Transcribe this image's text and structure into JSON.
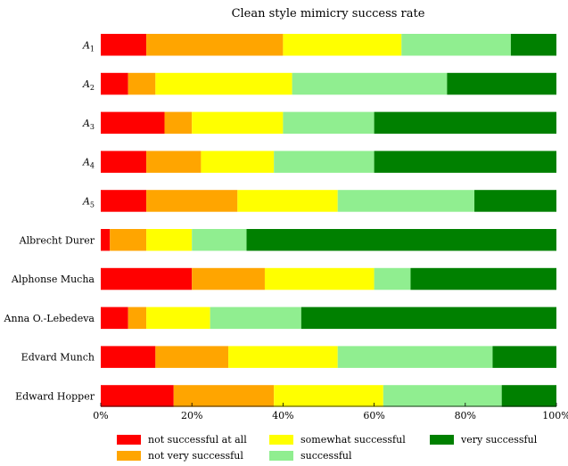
{
  "chart_data": {
    "type": "bar",
    "orientation": "horizontal",
    "stacked": true,
    "title": "Clean style mimicry success rate",
    "categories": [
      {
        "base": "A",
        "sub": "1"
      },
      {
        "base": "A",
        "sub": "2"
      },
      {
        "base": "A",
        "sub": "3"
      },
      {
        "base": "A",
        "sub": "4"
      },
      {
        "base": "A",
        "sub": "5"
      },
      {
        "base": "Albrecht Durer",
        "sub": ""
      },
      {
        "base": "Alphonse Mucha",
        "sub": ""
      },
      {
        "base": "Anna O.-Lebedeva",
        "sub": ""
      },
      {
        "base": "Edvard Munch",
        "sub": ""
      },
      {
        "base": "Edward Hopper",
        "sub": ""
      }
    ],
    "series": [
      {
        "name": "not successful at all",
        "color": "#ff0000",
        "values": [
          10,
          6,
          14,
          10,
          10,
          2,
          20,
          6,
          12,
          16
        ]
      },
      {
        "name": "not very successful",
        "color": "#ffa500",
        "values": [
          30,
          6,
          6,
          12,
          20,
          8,
          16,
          4,
          16,
          22
        ]
      },
      {
        "name": "somewhat successful",
        "color": "#ffff00",
        "values": [
          26,
          30,
          20,
          16,
          22,
          10,
          24,
          14,
          24,
          24
        ]
      },
      {
        "name": "successful",
        "color": "#90ee90",
        "values": [
          24,
          34,
          20,
          22,
          30,
          12,
          8,
          20,
          34,
          26
        ]
      },
      {
        "name": "very successful",
        "color": "#008000",
        "values": [
          10,
          24,
          40,
          40,
          18,
          68,
          32,
          56,
          14,
          12
        ]
      }
    ],
    "xlim": [
      0,
      100
    ],
    "xticks": [
      0,
      20,
      40,
      60,
      80,
      100
    ],
    "xtick_labels": [
      "0%",
      "20%",
      "40%",
      "60%",
      "80%",
      "100%"
    ],
    "grid": false,
    "legend_position": "bottom"
  }
}
